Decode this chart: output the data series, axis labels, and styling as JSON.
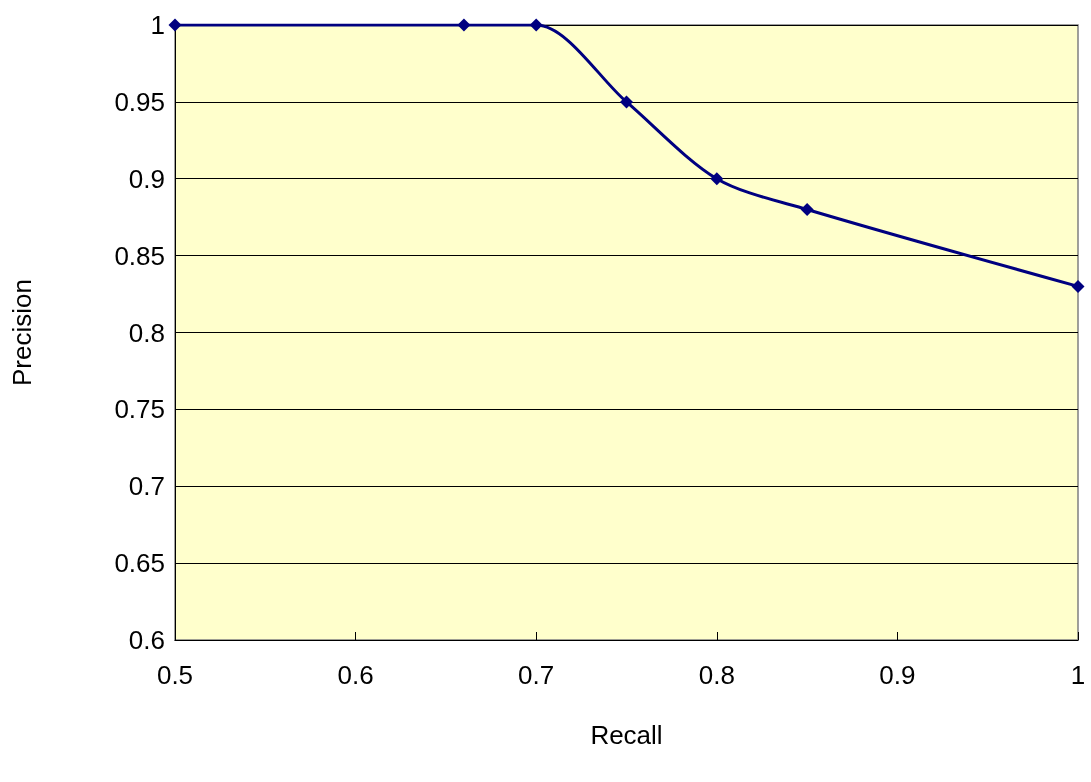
{
  "chart_data": {
    "type": "line",
    "xlabel": "Recall",
    "ylabel": "Precision",
    "x": [
      0.5,
      0.66,
      0.7,
      0.75,
      0.8,
      0.85,
      1
    ],
    "series": [
      {
        "color": "#000080",
        "values": [
          1,
          1,
          1,
          0.95,
          0.9,
          0.88,
          0.83
        ]
      }
    ],
    "xlim": [
      0.5,
      1
    ],
    "xticks": [
      0.5,
      0.6,
      0.7,
      0.8,
      0.9,
      1
    ],
    "ylim": [
      0.6,
      1
    ],
    "yticks": [
      0.6,
      0.65,
      0.7,
      0.75,
      0.8,
      0.85,
      0.9,
      0.95,
      1
    ],
    "grid": "y",
    "marker": "diamond",
    "line_style": "solid"
  }
}
